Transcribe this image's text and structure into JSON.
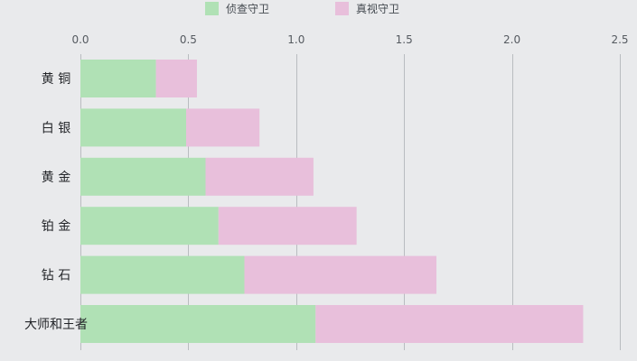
{
  "chart_data": {
    "type": "bar",
    "orientation": "horizontal",
    "stacked": true,
    "categories": [
      "黄 铜",
      "白 银",
      "黄 金",
      "铂 金",
      "钻 石",
      "大师和王者"
    ],
    "series": [
      {
        "name": "侦查守卫",
        "color": "#b0e1b5",
        "values": [
          0.35,
          0.49,
          0.58,
          0.64,
          0.76,
          1.09
        ]
      },
      {
        "name": "真视守卫",
        "color": "#e8bfdb",
        "values": [
          0.19,
          0.34,
          0.5,
          0.64,
          0.89,
          1.24
        ]
      }
    ],
    "xlim": [
      0,
      2.5
    ],
    "xticks": [
      0,
      0.5,
      1,
      1.5,
      2,
      2.5
    ],
    "xtick_labels": [
      "0.0",
      "0.5",
      "1.0",
      "1.5",
      "2.0",
      "2.5"
    ],
    "grid": true,
    "legend_position": "top-center",
    "title": "",
    "xlabel": "",
    "ylabel": ""
  }
}
